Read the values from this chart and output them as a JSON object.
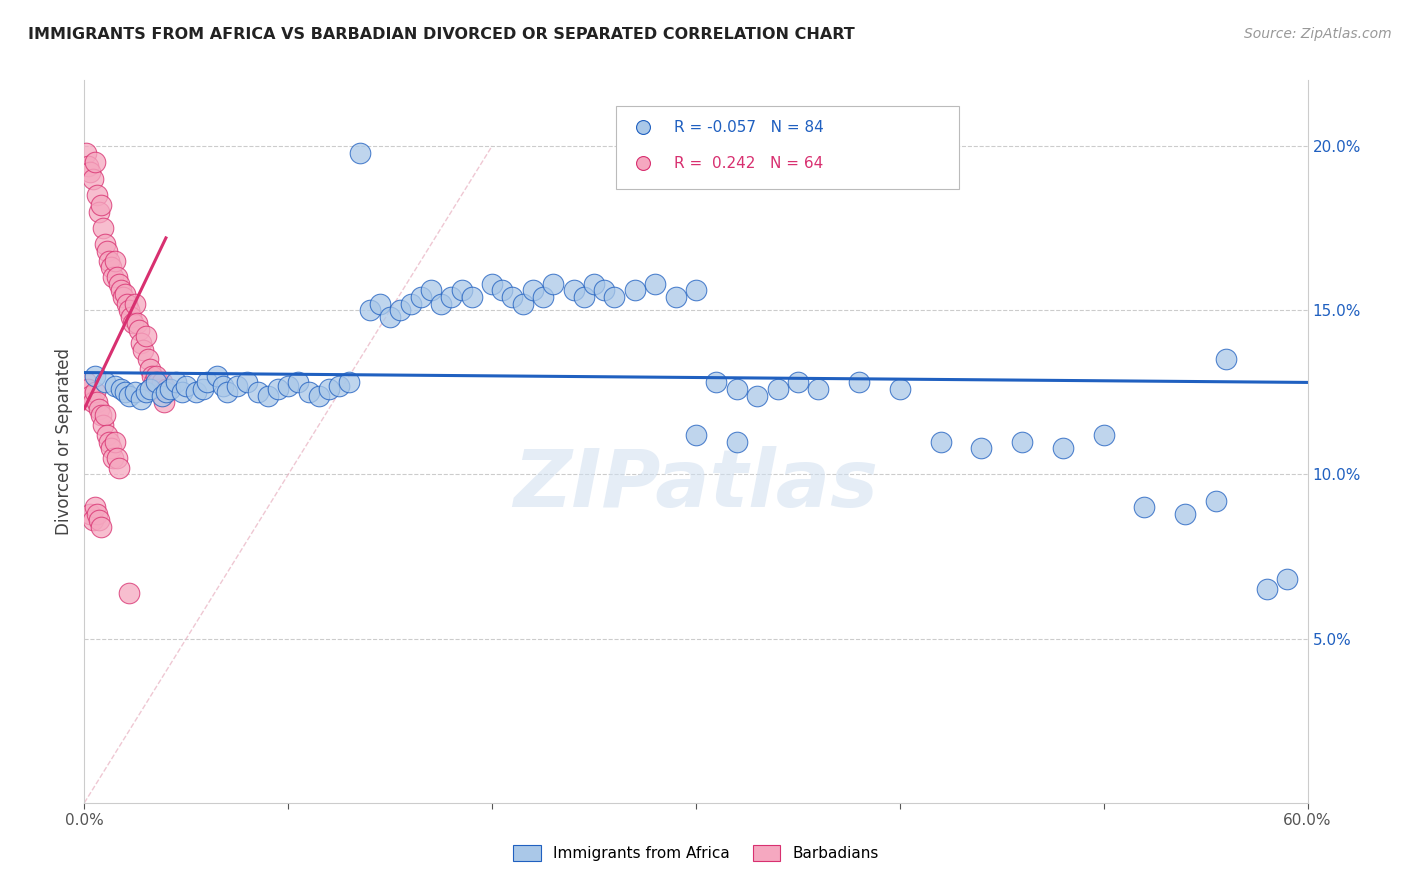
{
  "title": "IMMIGRANTS FROM AFRICA VS BARBADIAN DIVORCED OR SEPARATED CORRELATION CHART",
  "source": "Source: ZipAtlas.com",
  "ylabel": "Divorced or Separated",
  "xlim": [
    0.0,
    0.6
  ],
  "ylim": [
    0.0,
    0.22
  ],
  "xticks": [
    0.0,
    0.1,
    0.2,
    0.3,
    0.4,
    0.5,
    0.6
  ],
  "xticklabels": [
    "0.0%",
    "",
    "",
    "",
    "",
    "",
    "60.0%"
  ],
  "yticks_right": [
    0.05,
    0.1,
    0.15,
    0.2
  ],
  "yticklabels_right": [
    "5.0%",
    "10.0%",
    "15.0%",
    "20.0%"
  ],
  "legend_labels": [
    "Immigrants from Africa",
    "Barbadians"
  ],
  "blue_R": "-0.057",
  "blue_N": "84",
  "pink_R": "0.242",
  "pink_N": "64",
  "blue_color": "#aac8e8",
  "pink_color": "#f5a8c0",
  "blue_line_color": "#2060c0",
  "pink_line_color": "#d83070",
  "watermark": "ZIPatlas",
  "blue_scatter_x": [
    0.005,
    0.01,
    0.015,
    0.018,
    0.02,
    0.022,
    0.025,
    0.028,
    0.03,
    0.032,
    0.035,
    0.038,
    0.04,
    0.042,
    0.045,
    0.048,
    0.05,
    0.055,
    0.058,
    0.06,
    0.065,
    0.068,
    0.07,
    0.075,
    0.08,
    0.085,
    0.09,
    0.095,
    0.1,
    0.105,
    0.11,
    0.115,
    0.12,
    0.125,
    0.13,
    0.14,
    0.145,
    0.15,
    0.155,
    0.16,
    0.165,
    0.17,
    0.175,
    0.18,
    0.185,
    0.19,
    0.2,
    0.205,
    0.21,
    0.215,
    0.22,
    0.225,
    0.23,
    0.24,
    0.245,
    0.25,
    0.255,
    0.26,
    0.27,
    0.28,
    0.29,
    0.3,
    0.31,
    0.32,
    0.33,
    0.34,
    0.35,
    0.36,
    0.38,
    0.4,
    0.42,
    0.44,
    0.46,
    0.48,
    0.5,
    0.52,
    0.54,
    0.555,
    0.56,
    0.58,
    0.59,
    0.3,
    0.32,
    0.135
  ],
  "blue_scatter_y": [
    0.13,
    0.128,
    0.127,
    0.126,
    0.125,
    0.124,
    0.125,
    0.123,
    0.125,
    0.126,
    0.128,
    0.124,
    0.125,
    0.126,
    0.128,
    0.125,
    0.127,
    0.125,
    0.126,
    0.128,
    0.13,
    0.127,
    0.125,
    0.127,
    0.128,
    0.125,
    0.124,
    0.126,
    0.127,
    0.128,
    0.125,
    0.124,
    0.126,
    0.127,
    0.128,
    0.15,
    0.152,
    0.148,
    0.15,
    0.152,
    0.154,
    0.156,
    0.152,
    0.154,
    0.156,
    0.154,
    0.158,
    0.156,
    0.154,
    0.152,
    0.156,
    0.154,
    0.158,
    0.156,
    0.154,
    0.158,
    0.156,
    0.154,
    0.156,
    0.158,
    0.154,
    0.156,
    0.128,
    0.126,
    0.124,
    0.126,
    0.128,
    0.126,
    0.128,
    0.126,
    0.11,
    0.108,
    0.11,
    0.108,
    0.112,
    0.09,
    0.088,
    0.092,
    0.135,
    0.065,
    0.068,
    0.112,
    0.11,
    0.198
  ],
  "pink_scatter_x": [
    0.001,
    0.002,
    0.003,
    0.004,
    0.005,
    0.006,
    0.007,
    0.008,
    0.009,
    0.01,
    0.011,
    0.012,
    0.013,
    0.014,
    0.015,
    0.016,
    0.017,
    0.018,
    0.019,
    0.02,
    0.021,
    0.022,
    0.023,
    0.024,
    0.025,
    0.026,
    0.027,
    0.028,
    0.029,
    0.03,
    0.031,
    0.032,
    0.033,
    0.034,
    0.035,
    0.036,
    0.037,
    0.038,
    0.039,
    0.04,
    0.001,
    0.002,
    0.003,
    0.004,
    0.005,
    0.006,
    0.007,
    0.008,
    0.009,
    0.01,
    0.011,
    0.012,
    0.013,
    0.014,
    0.015,
    0.016,
    0.017,
    0.003,
    0.004,
    0.005,
    0.006,
    0.007,
    0.008,
    0.022
  ],
  "pink_scatter_y": [
    0.198,
    0.194,
    0.192,
    0.19,
    0.195,
    0.185,
    0.18,
    0.182,
    0.175,
    0.17,
    0.168,
    0.165,
    0.163,
    0.16,
    0.165,
    0.16,
    0.158,
    0.156,
    0.154,
    0.155,
    0.152,
    0.15,
    0.148,
    0.146,
    0.152,
    0.146,
    0.144,
    0.14,
    0.138,
    0.142,
    0.135,
    0.132,
    0.13,
    0.128,
    0.13,
    0.128,
    0.126,
    0.128,
    0.122,
    0.126,
    0.128,
    0.126,
    0.124,
    0.122,
    0.125,
    0.122,
    0.12,
    0.118,
    0.115,
    0.118,
    0.112,
    0.11,
    0.108,
    0.105,
    0.11,
    0.105,
    0.102,
    0.088,
    0.086,
    0.09,
    0.088,
    0.086,
    0.084,
    0.064
  ],
  "blue_trendline_x": [
    0.0,
    0.6
  ],
  "blue_trendline_y": [
    0.131,
    0.128
  ],
  "pink_trendline_x": [
    0.0,
    0.04
  ],
  "pink_trendline_y": [
    0.12,
    0.172
  ]
}
